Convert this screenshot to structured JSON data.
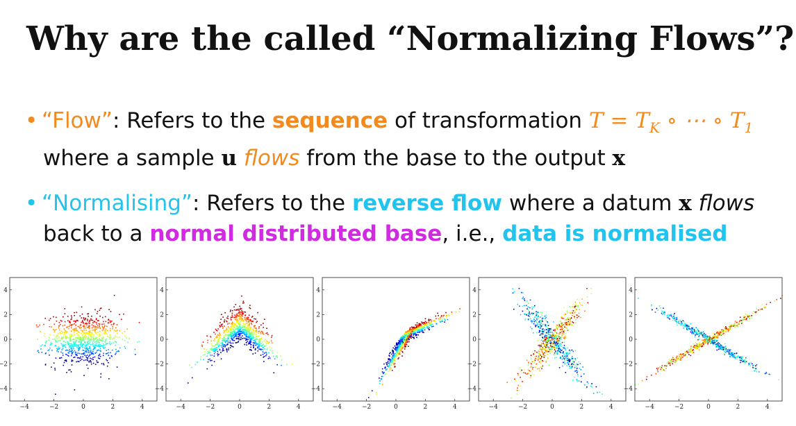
{
  "slide": {
    "title": "Why are the called “Normalizing Flows”?",
    "bullet1": {
      "dot": "•",
      "term": "“Flow”",
      "t1": ": Refers to the ",
      "highlight": "sequence",
      "t2": " of transformation ",
      "math": "T = T",
      "sub_k": "K",
      "compose": " ∘ ⋯ ∘ T",
      "sub_1": "1",
      "l2_a": "where a sample ",
      "vec_u": "u",
      "flows": "flows",
      "l2_b": " from the base to the output ",
      "vec_x": "x"
    },
    "bullet2": {
      "dot": "•",
      "term": "“Normalising”",
      "t1": ": Refers to the ",
      "highlight": "reverse flow",
      "t2": " where a datum ",
      "vec_x": "x",
      "flows": "flows",
      "l2_a": "back to a ",
      "highlight2": "normal distributed base",
      "l2_b": ", i.e., ",
      "highlight3": "data is normalised"
    },
    "colors": {
      "orange": "#f28a1e",
      "cyan": "#22c4ee",
      "magenta": "#d02be0"
    }
  },
  "chart_data": [
    {
      "type": "scatter",
      "shape": "gaussian-blob",
      "xlim": [
        -5,
        5
      ],
      "ylim": [
        -5,
        5
      ],
      "xticks": [
        "−4",
        "−2",
        "0",
        "2",
        "4"
      ],
      "yticks": [
        "4",
        "2",
        "0",
        "−2",
        "−4"
      ],
      "colormap": "jet"
    },
    {
      "type": "scatter",
      "shape": "inverted-v",
      "xlim": [
        -5,
        5
      ],
      "ylim": [
        -5,
        5
      ],
      "xticks": [
        "−4",
        "−2",
        "0",
        "2",
        "4"
      ],
      "yticks": [
        "4",
        "2",
        "0",
        "−2",
        "−4"
      ],
      "colormap": "jet"
    },
    {
      "type": "scatter",
      "shape": "arrow-corner",
      "xlim": [
        -5,
        5
      ],
      "ylim": [
        -5,
        5
      ],
      "xticks": [
        "−4",
        "−2",
        "0",
        "2",
        "4"
      ],
      "yticks": [
        "4",
        "2",
        "0",
        "−2",
        "−4"
      ],
      "colormap": "jet"
    },
    {
      "type": "scatter",
      "shape": "rough-x",
      "xlim": [
        -5,
        5
      ],
      "ylim": [
        -5,
        5
      ],
      "xticks": [
        "−4",
        "−2",
        "0",
        "2",
        "4"
      ],
      "yticks": [
        "4",
        "2",
        "0",
        "−2",
        "−4"
      ],
      "colormap": "jet"
    },
    {
      "type": "scatter",
      "shape": "x-cross",
      "xlim": [
        -5,
        5
      ],
      "ylim": [
        -5,
        5
      ],
      "xticks": [
        "−4",
        "−2",
        "0",
        "2",
        "4"
      ],
      "yticks": [
        "4",
        "2",
        "0",
        "−2",
        "−4"
      ],
      "colormap": "jet"
    }
  ]
}
